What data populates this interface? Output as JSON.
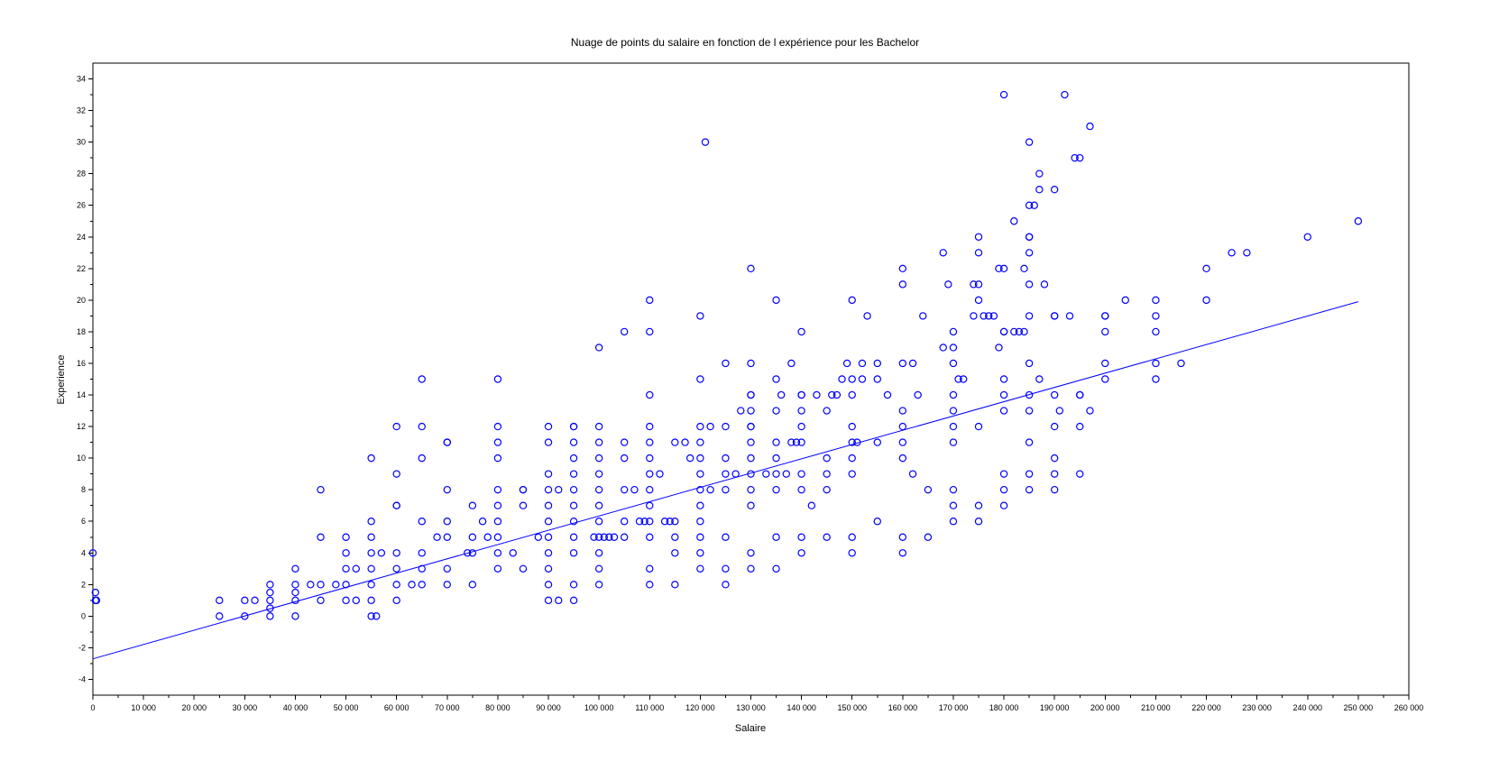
{
  "chart_data": {
    "type": "scatter",
    "title": "Nuage de points du salaire en fonction de l expérience pour les Bachelor",
    "xlabel": "Salaire",
    "ylabel": "Experience",
    "xlim": [
      0,
      260000
    ],
    "ylim": [
      -5,
      35
    ],
    "x_ticks": [
      0,
      10000,
      20000,
      30000,
      40000,
      50000,
      60000,
      70000,
      80000,
      90000,
      100000,
      110000,
      120000,
      130000,
      140000,
      150000,
      160000,
      170000,
      180000,
      190000,
      200000,
      210000,
      220000,
      230000,
      240000,
      250000,
      260000
    ],
    "x_tick_labels": [
      "0",
      "10 000",
      "20 000",
      "30 000",
      "40 000",
      "50 000",
      "60 000",
      "70 000",
      "80 000",
      "90 000",
      "100 000",
      "110 000",
      "120 000",
      "130 000",
      "140 000",
      "150 000",
      "160 000",
      "170 000",
      "180 000",
      "190 000",
      "200 000",
      "210 000",
      "220 000",
      "230 000",
      "240 000",
      "250 000",
      "260 000"
    ],
    "y_ticks": [
      -4,
      -2,
      0,
      2,
      4,
      6,
      8,
      10,
      12,
      14,
      16,
      18,
      20,
      22,
      24,
      26,
      28,
      30,
      32,
      34
    ],
    "y_tick_labels": [
      "-4",
      "-2",
      "0",
      "2",
      "4",
      "6",
      "8",
      "10",
      "12",
      "14",
      "16",
      "18",
      "20",
      "22",
      "24",
      "26",
      "28",
      "30",
      "32",
      "34"
    ],
    "grid": false,
    "point_color": "#0000ff",
    "line_color": "#0000ff",
    "marker": "circle-open",
    "series": [
      {
        "x": [
          0,
          500,
          500,
          700,
          25000,
          25000,
          30000,
          30000,
          32000,
          35000,
          35000,
          35000,
          35000,
          35000,
          40000,
          40000,
          40000,
          40000,
          40000,
          43000,
          45000,
          45000,
          45000,
          45000,
          48000,
          50000,
          50000,
          50000,
          50000,
          50000,
          52000,
          52000,
          55000,
          55000,
          55000,
          55000,
          55000,
          55000,
          55000,
          55000,
          56000,
          57000,
          60000,
          60000,
          60000,
          60000,
          60000,
          60000,
          60000,
          60000,
          63000,
          65000,
          65000,
          65000,
          65000,
          65000,
          65000,
          65000,
          68000,
          70000,
          70000,
          70000,
          70000,
          70000,
          70000,
          70000,
          74000,
          75000,
          75000,
          75000,
          75000,
          77000,
          78000,
          80000,
          80000,
          80000,
          80000,
          80000,
          80000,
          80000,
          80000,
          80000,
          80000,
          83000,
          85000,
          85000,
          85000,
          85000,
          88000,
          90000,
          90000,
          90000,
          90000,
          90000,
          90000,
          90000,
          90000,
          90000,
          90000,
          90000,
          92000,
          92000,
          95000,
          95000,
          95000,
          95000,
          95000,
          95000,
          95000,
          95000,
          95000,
          95000,
          95000,
          95000,
          99000,
          100000,
          100000,
          100000,
          100000,
          100000,
          100000,
          100000,
          100000,
          100000,
          100000,
          100000,
          100000,
          101000,
          102000,
          103000,
          105000,
          105000,
          105000,
          105000,
          105000,
          105000,
          107000,
          108000,
          109000,
          110000,
          110000,
          110000,
          110000,
          110000,
          110000,
          110000,
          110000,
          110000,
          110000,
          110000,
          110000,
          110000,
          112000,
          113000,
          114000,
          115000,
          115000,
          115000,
          115000,
          115000,
          117000,
          118000,
          120000,
          120000,
          120000,
          120000,
          120000,
          120000,
          120000,
          120000,
          120000,
          120000,
          120000,
          120000,
          121000,
          122000,
          122000,
          125000,
          125000,
          125000,
          125000,
          125000,
          125000,
          125000,
          125000,
          127000,
          128000,
          130000,
          130000,
          130000,
          130000,
          130000,
          130000,
          130000,
          130000,
          130000,
          130000,
          130000,
          130000,
          130000,
          130000,
          133000,
          135000,
          135000,
          135000,
          135000,
          135000,
          135000,
          135000,
          135000,
          135000,
          136000,
          137000,
          138000,
          138000,
          139000,
          140000,
          140000,
          140000,
          140000,
          140000,
          140000,
          140000,
          140000,
          140000,
          140000,
          142000,
          143000,
          145000,
          145000,
          145000,
          145000,
          145000,
          146000,
          147000,
          148000,
          149000,
          150000,
          150000,
          150000,
          150000,
          150000,
          150000,
          150000,
          150000,
          150000,
          151000,
          152000,
          152000,
          153000,
          155000,
          155000,
          155000,
          155000,
          157000,
          160000,
          160000,
          160000,
          160000,
          160000,
          160000,
          160000,
          160000,
          160000,
          162000,
          162000,
          163000,
          164000,
          165000,
          165000,
          168000,
          168000,
          169000,
          170000,
          170000,
          170000,
          170000,
          170000,
          170000,
          170000,
          170000,
          170000,
          170000,
          171000,
          172000,
          174000,
          174000,
          175000,
          175000,
          175000,
          175000,
          175000,
          175000,
          175000,
          176000,
          177000,
          178000,
          179000,
          179000,
          180000,
          180000,
          180000,
          180000,
          180000,
          180000,
          180000,
          180000,
          180000,
          180000,
          182000,
          182000,
          183000,
          184000,
          184000,
          185000,
          185000,
          185000,
          185000,
          185000,
          185000,
          185000,
          185000,
          185000,
          185000,
          185000,
          185000,
          185000,
          186000,
          187000,
          187000,
          187000,
          188000,
          190000,
          190000,
          190000,
          190000,
          190000,
          190000,
          190000,
          190000,
          191000,
          192000,
          193000,
          194000,
          195000,
          195000,
          195000,
          195000,
          195000,
          197000,
          197000,
          200000,
          200000,
          200000,
          200000,
          200000,
          204000,
          210000,
          210000,
          210000,
          210000,
          210000,
          215000,
          220000,
          220000,
          225000,
          228000,
          240000,
          250000
        ],
        "y": [
          4,
          1,
          1.5,
          1,
          0,
          1,
          0,
          1,
          1,
          0,
          0.5,
          1,
          1.5,
          2,
          0,
          1,
          1.5,
          2,
          3,
          2,
          1,
          2,
          5,
          8,
          2,
          1,
          2,
          3,
          4,
          5,
          1,
          3,
          0,
          1,
          2,
          3,
          4,
          5,
          6,
          10,
          0,
          4,
          1,
          2,
          3,
          4,
          7,
          7,
          9,
          12,
          2,
          2,
          3,
          4,
          6,
          10,
          12,
          15,
          5,
          2,
          3,
          5,
          6,
          8,
          11,
          11,
          4,
          2,
          4,
          5,
          7,
          6,
          5,
          3,
          4,
          5,
          6,
          7,
          8,
          10,
          11,
          12,
          15,
          4,
          3,
          7,
          8,
          8,
          5,
          1,
          2,
          3,
          4,
          5,
          6,
          7,
          8,
          9,
          11,
          12,
          1,
          8,
          1,
          2,
          4,
          5,
          6,
          7,
          8,
          9,
          10,
          11,
          12,
          12,
          5,
          2,
          3,
          4,
          5,
          6,
          7,
          8,
          9,
          10,
          11,
          12,
          17,
          5,
          5,
          5,
          5,
          6,
          8,
          10,
          11,
          18,
          8,
          6,
          6,
          2,
          3,
          5,
          6,
          7,
          8,
          9,
          10,
          11,
          12,
          14,
          18,
          20,
          9,
          6,
          6,
          2,
          4,
          5,
          6,
          11,
          11,
          10,
          3,
          4,
          5,
          6,
          7,
          8,
          9,
          10,
          11,
          12,
          15,
          19,
          30,
          8,
          12,
          2,
          3,
          5,
          8,
          9,
          10,
          12,
          16,
          9,
          13,
          3,
          4,
          7,
          8,
          9,
          10,
          11,
          12,
          12,
          13,
          14,
          14,
          16,
          22,
          9,
          3,
          5,
          8,
          9,
          10,
          11,
          13,
          15,
          20,
          14,
          9,
          11,
          16,
          11,
          4,
          5,
          8,
          9,
          11,
          12,
          13,
          14,
          14,
          18,
          7,
          14,
          5,
          8,
          9,
          10,
          13,
          14,
          14,
          15,
          16,
          4,
          5,
          9,
          10,
          11,
          12,
          14,
          15,
          20,
          11,
          15,
          16,
          19,
          6,
          11,
          15,
          16,
          14,
          4,
          5,
          10,
          11,
          12,
          13,
          16,
          21,
          22,
          9,
          16,
          14,
          19,
          5,
          8,
          17,
          23,
          21,
          6,
          7,
          8,
          11,
          12,
          13,
          14,
          16,
          17,
          18,
          15,
          15,
          19,
          21,
          6,
          7,
          12,
          20,
          21,
          23,
          24,
          19,
          19,
          19,
          17,
          22,
          7,
          8,
          9,
          13,
          14,
          15,
          18,
          18,
          22,
          33,
          18,
          25,
          18,
          18,
          22,
          8,
          9,
          11,
          13,
          14,
          16,
          19,
          21,
          23,
          24,
          24,
          26,
          30,
          26,
          15,
          27,
          28,
          21,
          8,
          9,
          10,
          12,
          14,
          19,
          19,
          27,
          13,
          33,
          19,
          29,
          9,
          12,
          14,
          14,
          29,
          13,
          31,
          15,
          16,
          18,
          19,
          19,
          20,
          15,
          16,
          18,
          19,
          20,
          16,
          20,
          22,
          23,
          23,
          24,
          25
        ]
      },
      {
        "x": [
          0,
          250000
        ],
        "y": [
          -2.7,
          19.9
        ]
      }
    ]
  }
}
